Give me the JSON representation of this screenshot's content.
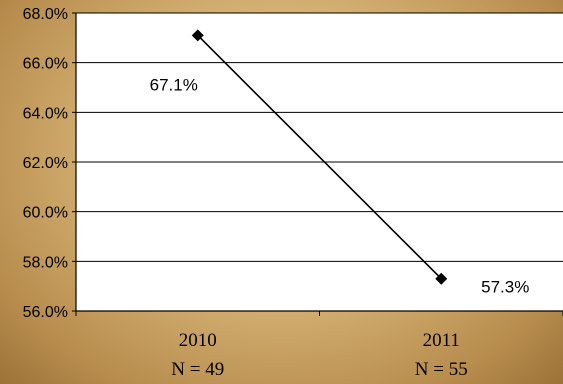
{
  "chart_data": {
    "type": "line",
    "categories": [
      "2010",
      "2011"
    ],
    "category_sublabels": [
      "N = 49",
      "N = 55"
    ],
    "series": [
      {
        "values": [
          67.1,
          57.3
        ],
        "data_labels": [
          "67.1%",
          "57.3%"
        ],
        "color": "#000000",
        "marker": "diamond"
      }
    ],
    "y_ticks": [
      "56.0%",
      "58.0%",
      "60.0%",
      "62.0%",
      "64.0%",
      "66.0%",
      "68.0%"
    ],
    "ylim": [
      56,
      68
    ],
    "grid": true,
    "title": "",
    "xlabel": "",
    "ylabel": "",
    "plot_background": "#ffffff"
  }
}
